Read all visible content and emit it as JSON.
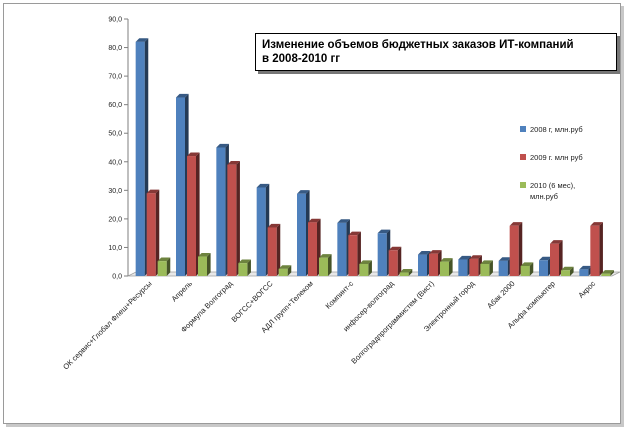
{
  "chart_data": {
    "type": "bar",
    "title": "Изменение объемов бюджетных заказов ИТ-компаний\nв 2008-2010 гг",
    "xlabel": "",
    "ylabel": "",
    "ylim": [
      0,
      90
    ],
    "yticks": [
      "0,0",
      "10,0",
      "20,0",
      "30,0",
      "40,0",
      "50,0",
      "60,0",
      "70,0",
      "80,0",
      "90,0"
    ],
    "legend_position": "right",
    "grid": false,
    "categories": [
      "ОК сервис+Глобал Флеш+Ресурсы",
      "Апрель",
      "Формула Волгоград",
      "ВОГСС+ВОГСС",
      "АДЛ групп+Телеком",
      "Компинт-с",
      "инфосер-волгоград",
      "Волгоградпрограммистем (Вист)",
      "Электронный город",
      "Абак 2000",
      "Альфа компьютер",
      "Акрос"
    ],
    "series": [
      {
        "name": "2008 г, млн.руб",
        "color": "#4f81bd",
        "values": [
          82.0,
          62.5,
          45.0,
          31.0,
          28.8,
          18.6,
          15.0,
          7.5,
          5.8,
          5.3,
          5.5,
          2.3
        ]
      },
      {
        "name": "2009 г. млн руб",
        "color": "#c0504d",
        "values": [
          29.0,
          42.0,
          39.0,
          17.0,
          18.8,
          14.3,
          9.0,
          7.8,
          6.0,
          17.6,
          11.3,
          17.6
        ]
      },
      {
        "name": "2010 (6 мес), млн.руб",
        "color": "#9bbb59",
        "values": [
          5.2,
          6.8,
          4.5,
          2.5,
          6.4,
          4.2,
          1.2,
          5.0,
          4.2,
          3.5,
          2.0,
          0.8
        ]
      }
    ]
  }
}
